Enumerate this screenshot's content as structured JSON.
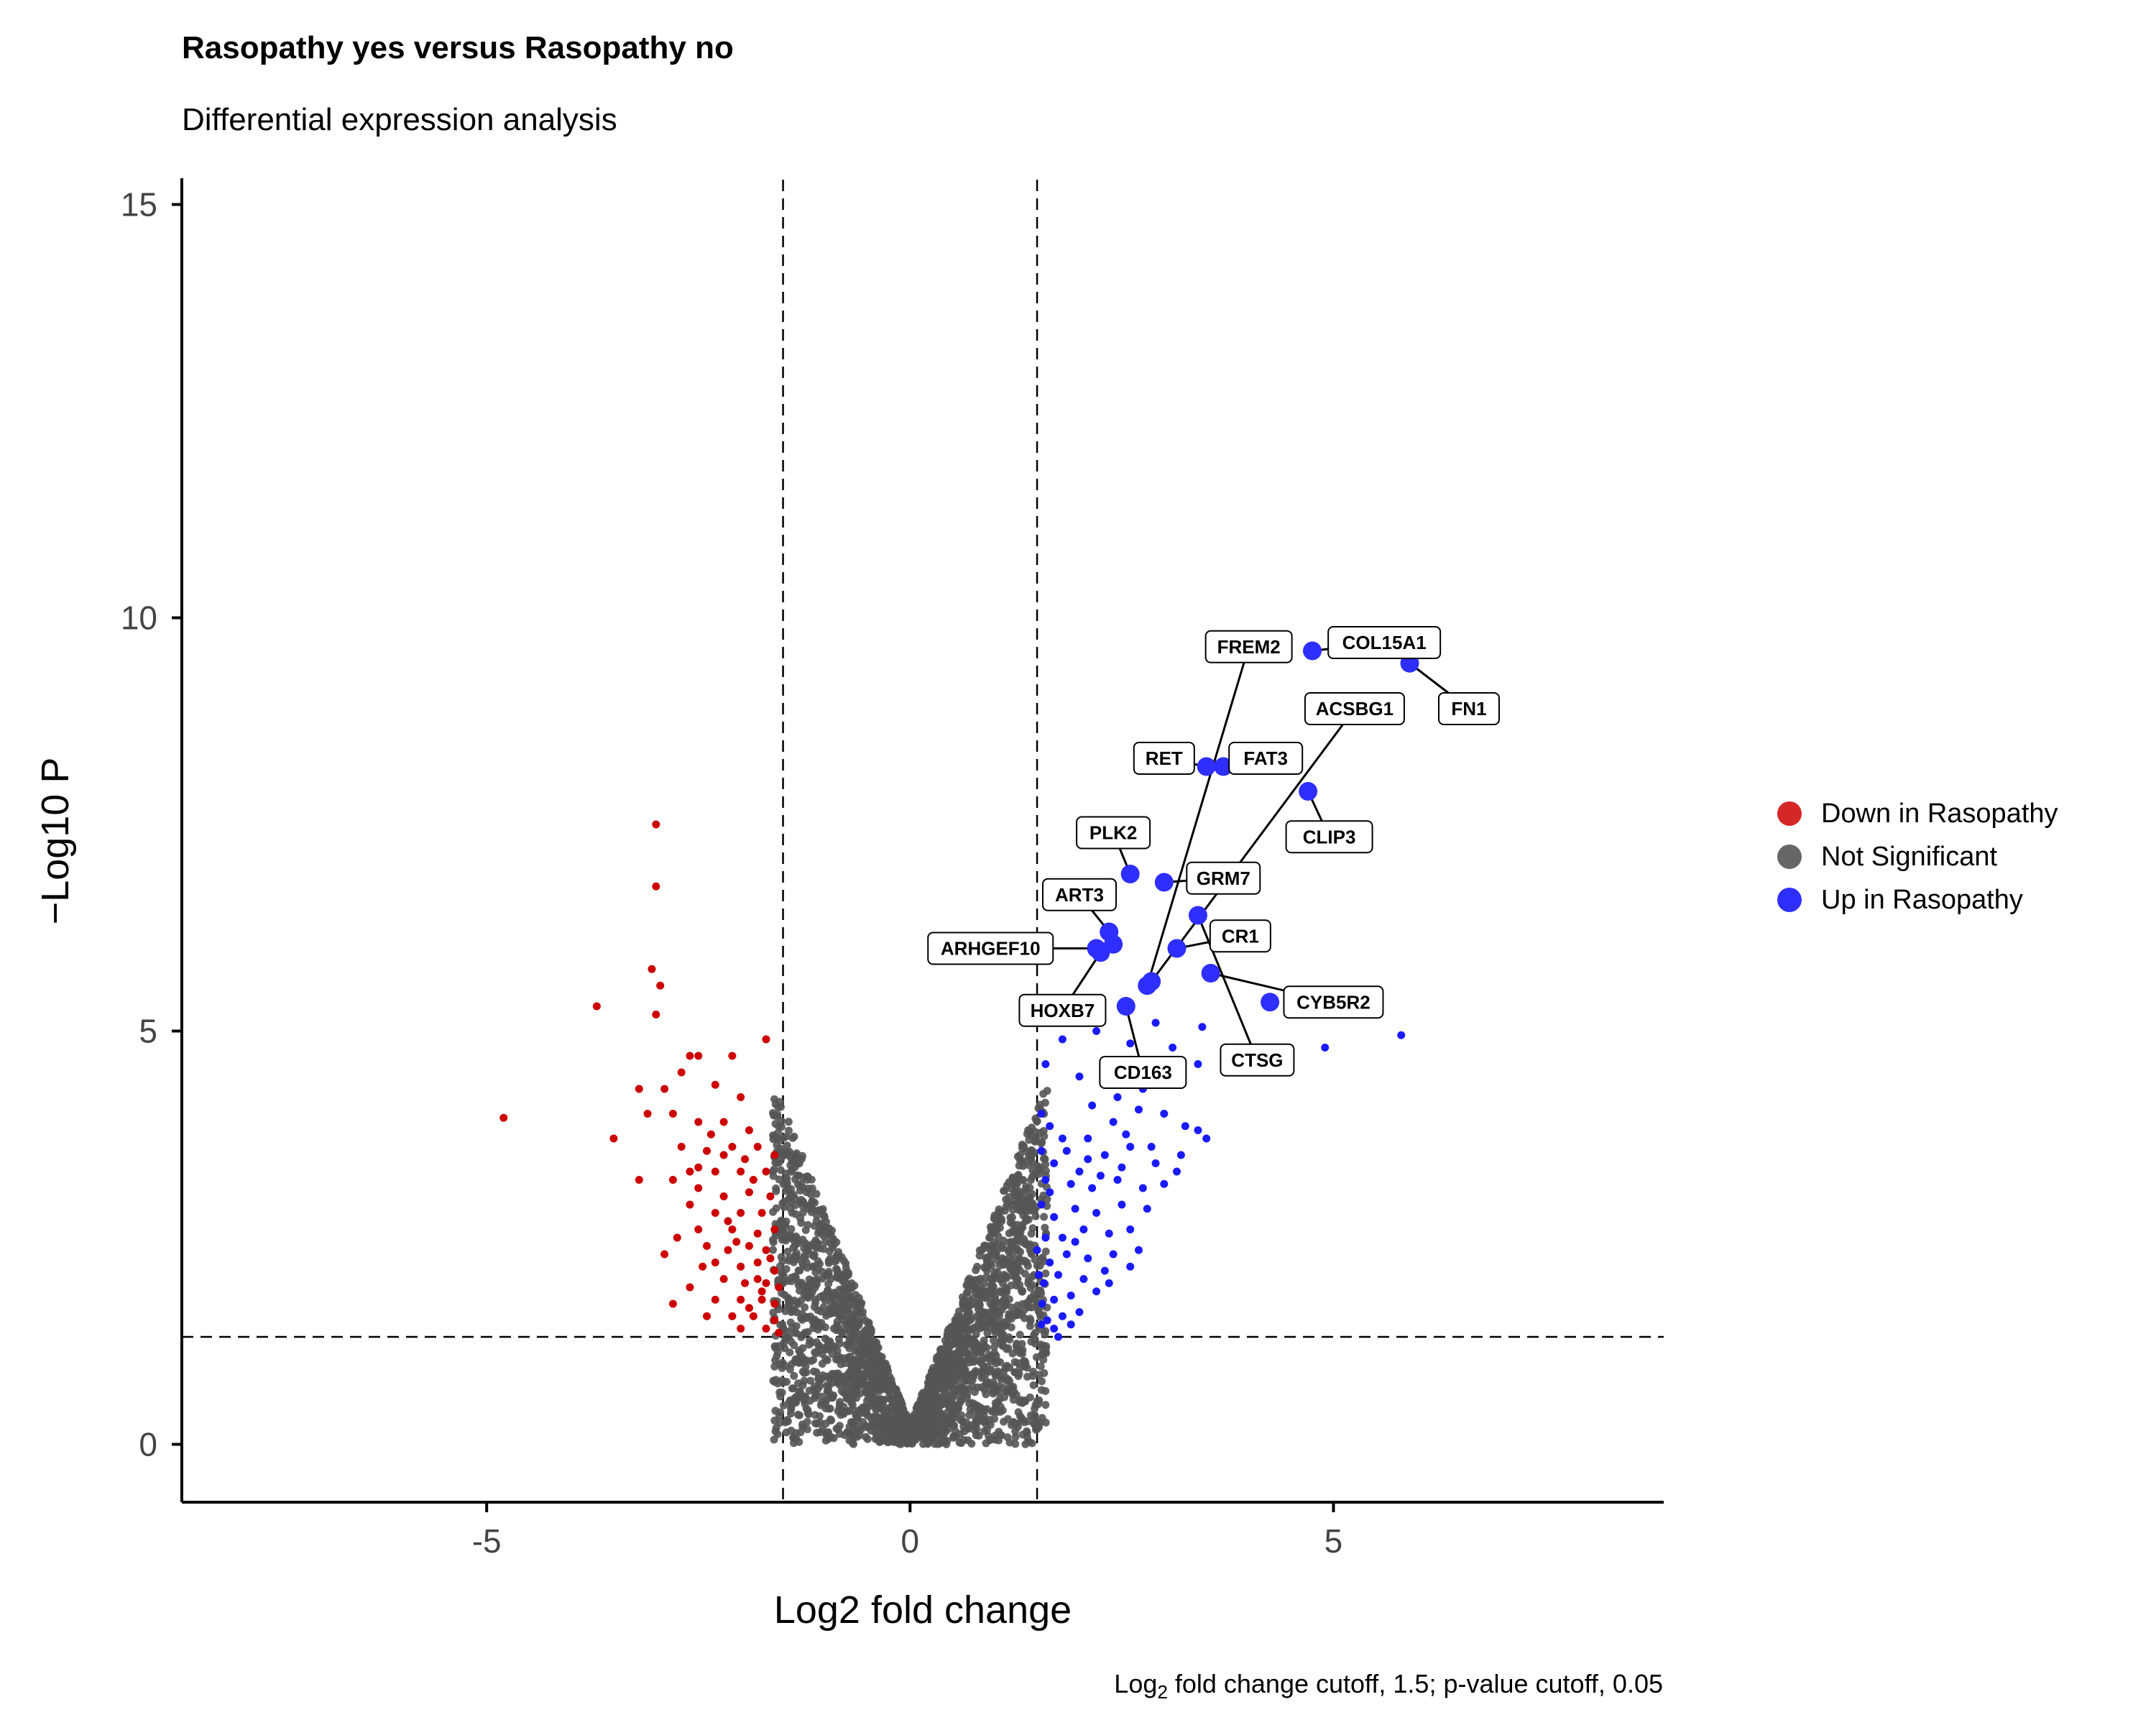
{
  "chart_data": {
    "type": "scatter",
    "title": "Rasopathy yes versus Rasopathy no",
    "subtitle": "Differential expression analysis",
    "xlabel": "Log2 fold change",
    "ylabel": "−Log10 P",
    "caption_parts": [
      "Log",
      "2",
      " fold change cutoff, 1.5; p-value cutoff, 0.05"
    ],
    "xlim": [
      -8.6,
      8.9
    ],
    "ylim": [
      -0.7,
      15.3
    ],
    "xticks": [
      -5,
      0,
      5
    ],
    "yticks": [
      0,
      5,
      10,
      15
    ],
    "xtick_labels": [
      "-5",
      "0",
      "5"
    ],
    "ytick_labels": [
      "0",
      "5",
      "10",
      "15"
    ],
    "fc_cutoff": 1.5,
    "p_cutoff_neglog10": 1.3,
    "legend_position": "right",
    "legend": [
      {
        "name": "Down in Rasopathy",
        "color": "#d62728"
      },
      {
        "name": "Not Significant",
        "color": "#666666"
      },
      {
        "name": "Up in Rasopathy",
        "color": "#2e2eff"
      }
    ],
    "colors": {
      "down": "#cc0000",
      "ns": "#555555",
      "up": "#1a1aff",
      "labeled_up": "#2e2eff"
    },
    "down_points": [
      [
        -4.8,
        3.95
      ],
      [
        -3.7,
        5.3
      ],
      [
        -3.0,
        7.5
      ],
      [
        -3.0,
        6.75
      ],
      [
        -3.05,
        5.75
      ],
      [
        -2.95,
        5.55
      ],
      [
        -3.0,
        5.2
      ],
      [
        -3.2,
        4.3
      ],
      [
        -2.9,
        4.3
      ],
      [
        -2.6,
        4.7
      ],
      [
        -2.5,
        4.7
      ],
      [
        -2.1,
        4.7
      ],
      [
        -2.7,
        4.5
      ],
      [
        -2.3,
        4.35
      ],
      [
        -2.0,
        4.2
      ],
      [
        -1.7,
        4.9
      ],
      [
        -3.5,
        3.7
      ],
      [
        -3.1,
        4.0
      ],
      [
        -2.8,
        4.0
      ],
      [
        -2.5,
        3.9
      ],
      [
        -2.2,
        3.9
      ],
      [
        -1.9,
        3.8
      ],
      [
        -2.7,
        3.6
      ],
      [
        -2.4,
        3.55
      ],
      [
        -2.1,
        3.6
      ],
      [
        -1.8,
        3.6
      ],
      [
        -2.6,
        3.3
      ],
      [
        -2.3,
        3.3
      ],
      [
        -2.0,
        3.3
      ],
      [
        -1.7,
        3.3
      ],
      [
        -1.6,
        3.5
      ],
      [
        -2.5,
        3.1
      ],
      [
        -2.2,
        3.0
      ],
      [
        -1.9,
        3.05
      ],
      [
        -1.65,
        3.0
      ],
      [
        -3.2,
        3.2
      ],
      [
        -2.8,
        3.2
      ],
      [
        -2.6,
        2.9
      ],
      [
        -2.3,
        2.8
      ],
      [
        -2.0,
        2.8
      ],
      [
        -1.75,
        2.8
      ],
      [
        -2.5,
        2.6
      ],
      [
        -2.1,
        2.6
      ],
      [
        -1.8,
        2.55
      ],
      [
        -1.6,
        2.6
      ],
      [
        -2.4,
        2.4
      ],
      [
        -2.15,
        2.35
      ],
      [
        -1.9,
        2.4
      ],
      [
        -1.7,
        2.35
      ],
      [
        -2.3,
        2.2
      ],
      [
        -2.0,
        2.15
      ],
      [
        -1.8,
        2.2
      ],
      [
        -1.6,
        2.1
      ],
      [
        -2.2,
        2.0
      ],
      [
        -1.95,
        1.95
      ],
      [
        -1.7,
        1.95
      ],
      [
        -1.55,
        1.9
      ],
      [
        -2.6,
        1.9
      ],
      [
        -2.3,
        1.75
      ],
      [
        -2.0,
        1.75
      ],
      [
        -1.75,
        1.75
      ],
      [
        -1.6,
        1.7
      ],
      [
        -2.8,
        1.7
      ],
      [
        -2.1,
        1.55
      ],
      [
        -1.85,
        1.55
      ],
      [
        -1.6,
        1.5
      ],
      [
        -2.4,
        1.55
      ],
      [
        -1.7,
        1.4
      ],
      [
        -1.55,
        1.35
      ],
      [
        -2.0,
        1.4
      ],
      [
        -2.2,
        3.5
      ],
      [
        -1.85,
        3.2
      ],
      [
        -2.05,
        2.45
      ],
      [
        -1.65,
        2.25
      ],
      [
        -1.8,
        2.0
      ],
      [
        -2.45,
        2.15
      ],
      [
        -2.75,
        2.5
      ],
      [
        -2.9,
        2.3
      ],
      [
        -2.35,
        3.75
      ],
      [
        -1.95,
        3.45
      ],
      [
        -2.15,
        2.7
      ],
      [
        -1.75,
        1.85
      ],
      [
        -1.9,
        1.65
      ],
      [
        -2.5,
        3.35
      ]
    ],
    "up_points": [
      [
        5.8,
        4.95
      ],
      [
        4.9,
        4.8
      ],
      [
        4.0,
        4.5
      ],
      [
        3.4,
        4.6
      ],
      [
        3.1,
        4.8
      ],
      [
        2.9,
        5.1
      ],
      [
        2.6,
        4.85
      ],
      [
        2.2,
        5.0
      ],
      [
        1.8,
        4.9
      ],
      [
        1.6,
        4.6
      ],
      [
        2.0,
        4.45
      ],
      [
        3.5,
        3.7
      ],
      [
        3.4,
        3.8
      ],
      [
        3.25,
        3.85
      ],
      [
        3.0,
        4.0
      ],
      [
        2.7,
        4.05
      ],
      [
        2.4,
        3.9
      ],
      [
        2.1,
        3.7
      ],
      [
        1.8,
        3.7
      ],
      [
        1.65,
        3.85
      ],
      [
        1.55,
        4.0
      ],
      [
        3.2,
        3.5
      ],
      [
        2.9,
        3.4
      ],
      [
        2.6,
        3.6
      ],
      [
        2.3,
        3.5
      ],
      [
        2.0,
        3.3
      ],
      [
        1.7,
        3.4
      ],
      [
        1.55,
        3.55
      ],
      [
        3.0,
        3.15
      ],
      [
        2.75,
        3.1
      ],
      [
        2.45,
        3.2
      ],
      [
        2.15,
        3.1
      ],
      [
        1.9,
        3.15
      ],
      [
        1.65,
        3.05
      ],
      [
        2.8,
        2.85
      ],
      [
        2.5,
        2.9
      ],
      [
        2.2,
        2.8
      ],
      [
        1.95,
        2.85
      ],
      [
        1.7,
        2.75
      ],
      [
        1.55,
        2.9
      ],
      [
        2.6,
        2.6
      ],
      [
        2.35,
        2.55
      ],
      [
        2.05,
        2.6
      ],
      [
        1.8,
        2.5
      ],
      [
        1.6,
        2.5
      ],
      [
        2.7,
        2.35
      ],
      [
        2.4,
        2.3
      ],
      [
        2.1,
        2.25
      ],
      [
        1.85,
        2.3
      ],
      [
        1.65,
        2.2
      ],
      [
        2.3,
        2.1
      ],
      [
        2.05,
        2.0
      ],
      [
        1.75,
        2.05
      ],
      [
        1.58,
        1.95
      ],
      [
        2.2,
        1.85
      ],
      [
        1.9,
        1.8
      ],
      [
        1.7,
        1.75
      ],
      [
        1.56,
        1.7
      ],
      [
        2.0,
        1.6
      ],
      [
        1.8,
        1.55
      ],
      [
        1.62,
        1.5
      ],
      [
        1.9,
        1.45
      ],
      [
        1.7,
        1.4
      ],
      [
        1.55,
        1.45
      ],
      [
        1.75,
        1.3
      ],
      [
        2.5,
        3.35
      ],
      [
        2.25,
        3.25
      ],
      [
        2.6,
        2.15
      ],
      [
        2.35,
        1.95
      ],
      [
        1.95,
        2.45
      ],
      [
        2.55,
        3.75
      ],
      [
        2.85,
        3.6
      ],
      [
        3.15,
        3.3
      ],
      [
        1.85,
        3.55
      ],
      [
        2.1,
        3.45
      ],
      [
        1.6,
        3.2
      ],
      [
        1.5,
        2.35
      ],
      [
        1.52,
        2.05
      ],
      [
        2.15,
        4.1
      ],
      [
        2.45,
        4.2
      ],
      [
        3.45,
        5.05
      ],
      [
        2.75,
        4.3
      ]
    ],
    "labeled_points": [
      {
        "label": "COL15A1",
        "x": 4.75,
        "y": 9.6,
        "tx": 5.6,
        "ty": 9.7
      },
      {
        "label": "FREM2",
        "x": 2.8,
        "y": 5.55,
        "tx": 4.0,
        "ty": 9.65
      },
      {
        "label": "FN1",
        "x": 5.9,
        "y": 9.45,
        "tx": 6.6,
        "ty": 8.9
      },
      {
        "label": "ACSBG1",
        "x": 2.85,
        "y": 5.6,
        "tx": 5.25,
        "ty": 8.9
      },
      {
        "label": "RET",
        "x": 3.5,
        "y": 8.2,
        "tx": 3.0,
        "ty": 8.3
      },
      {
        "label": "FAT3",
        "x": 3.7,
        "y": 8.2,
        "tx": 4.2,
        "ty": 8.3
      },
      {
        "label": "CLIP3",
        "x": 4.7,
        "y": 7.9,
        "tx": 4.95,
        "ty": 7.35
      },
      {
        "label": "PLK2",
        "x": 2.6,
        "y": 6.9,
        "tx": 2.4,
        "ty": 7.4
      },
      {
        "label": "GRM7",
        "x": 3.0,
        "y": 6.8,
        "tx": 3.7,
        "ty": 6.85
      },
      {
        "label": "ART3",
        "x": 2.35,
        "y": 6.2,
        "tx": 2.0,
        "ty": 6.65
      },
      {
        "label": "CR1",
        "x": 3.15,
        "y": 6.0,
        "tx": 3.9,
        "ty": 6.15
      },
      {
        "label": "ARHGEF10",
        "x": 2.2,
        "y": 6.0,
        "tx": 0.95,
        "ty": 6.0
      },
      {
        "label": "ARHGEF10",
        "x": 2.4,
        "y": 6.05,
        "tx": null,
        "ty": null
      },
      {
        "label": "HOXB7",
        "x": 2.25,
        "y": 5.95,
        "tx": 1.8,
        "ty": 5.25
      },
      {
        "label": "CYB5R2",
        "x": 3.55,
        "y": 5.7,
        "tx": 5.0,
        "ty": 5.35
      },
      {
        "label": "CYB5R2",
        "x": 4.25,
        "y": 5.35,
        "tx": null,
        "ty": null
      },
      {
        "label": "CD163",
        "x": 2.55,
        "y": 5.3,
        "tx": 2.75,
        "ty": 4.5
      },
      {
        "label": "CTSG",
        "x": 3.4,
        "y": 6.4,
        "tx": 4.1,
        "ty": 4.65
      }
    ]
  }
}
